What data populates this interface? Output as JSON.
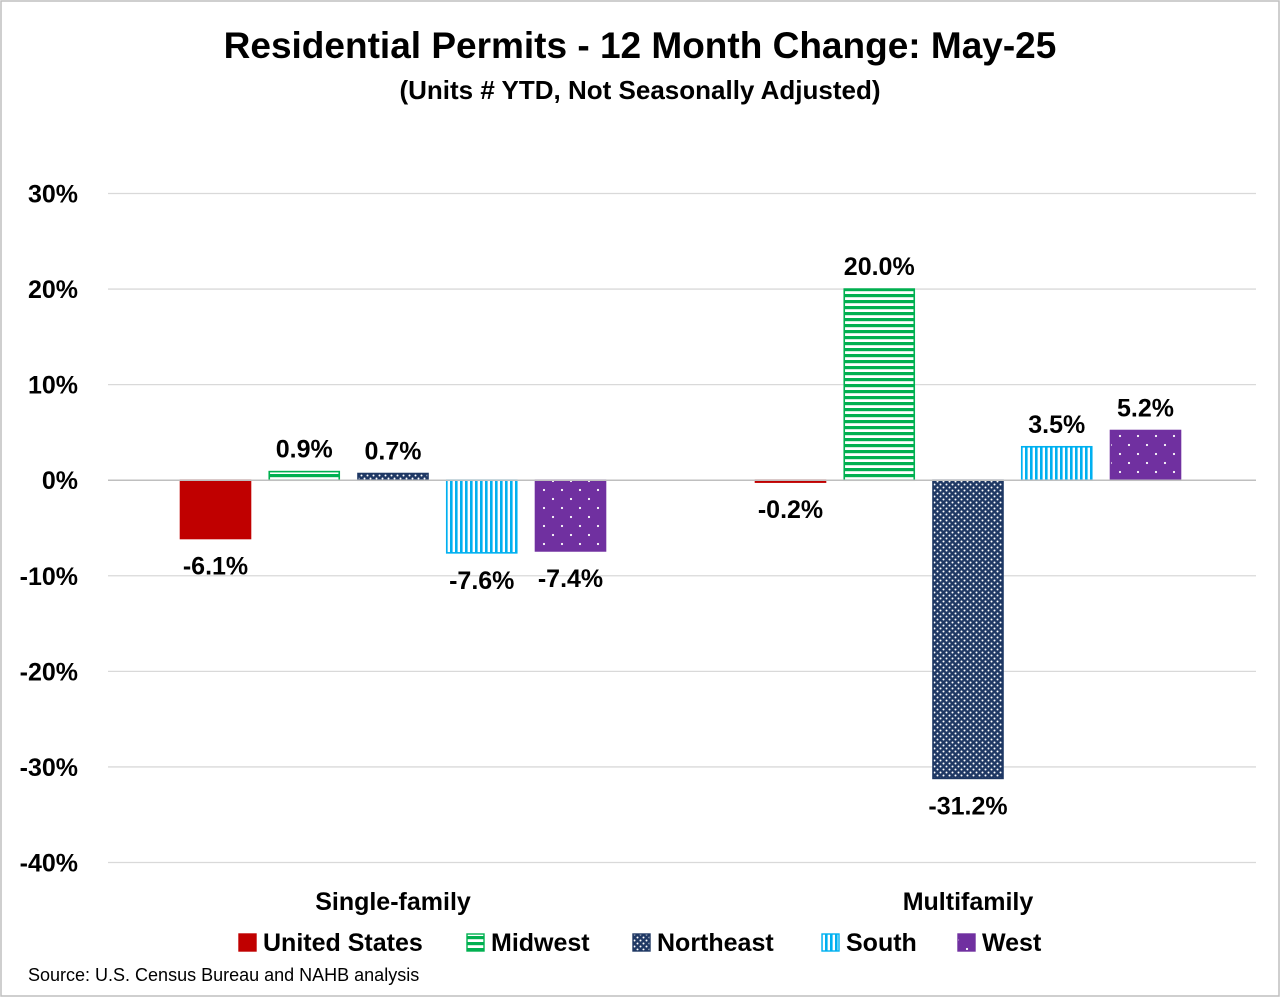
{
  "chart_data": {
    "type": "bar",
    "title": "Residential Permits - 12 Month Change:  May-25",
    "subtitle": "(Units # YTD, Not Seasonally Adjusted)",
    "categories": [
      "Single-family",
      "Multifamily"
    ],
    "ylim": [
      -40,
      30
    ],
    "yticks": [
      30,
      20,
      10,
      0,
      -10,
      -20,
      -30,
      -40
    ],
    "ytick_labels": [
      "30%",
      "20%",
      "10%",
      "0%",
      "-10%",
      "-20%",
      "-30%",
      "-40%"
    ],
    "grid": true,
    "legend_position": "bottom",
    "series": [
      {
        "name": "United States",
        "values": [
          -6.1,
          -0.2
        ],
        "labels": [
          "-6.1%",
          "-0.2%"
        ],
        "color": "#c00000",
        "pattern": "solid"
      },
      {
        "name": "Midwest",
        "values": [
          0.9,
          20.0
        ],
        "labels": [
          "0.9%",
          "20.0%"
        ],
        "color": "#00b050",
        "pattern": "horizontal-stripes"
      },
      {
        "name": "Northeast",
        "values": [
          0.7,
          -31.2
        ],
        "labels": [
          "0.7%",
          "-31.2%"
        ],
        "color": "#1f3864",
        "pattern": "checker"
      },
      {
        "name": "South",
        "values": [
          -7.6,
          3.5
        ],
        "labels": [
          "-7.6%",
          "3.5%"
        ],
        "color": "#00b0f0",
        "pattern": "vertical-stripes"
      },
      {
        "name": "West",
        "values": [
          -7.4,
          5.2
        ],
        "labels": [
          "-7.4%",
          "5.2%"
        ],
        "color": "#7030a0",
        "pattern": "dots"
      }
    ],
    "source": "Source: U.S. Census Bureau and NAHB analysis"
  }
}
